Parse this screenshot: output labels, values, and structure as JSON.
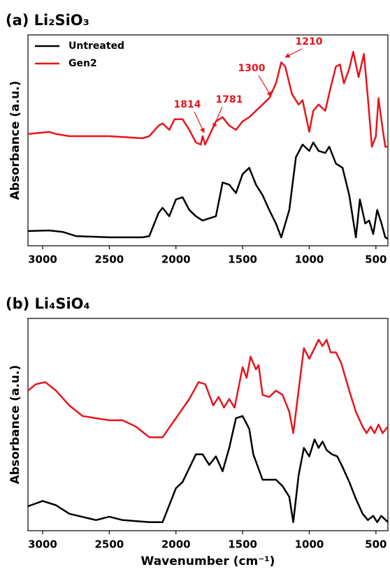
{
  "chart_data": [
    {
      "type": "line",
      "title": "(a) Li₂SiO₃",
      "ylabel": "Absorbance (a.u.)",
      "xlim": [
        3110,
        410
      ],
      "ylim": [
        0,
        100
      ],
      "xticks": [
        3000,
        2500,
        2000,
        1500,
        1000,
        500
      ],
      "legend": "upper left",
      "annotations": [
        1814,
        1781,
        1300,
        1210
      ],
      "annotation_color": "#e8141c",
      "series": [
        {
          "name": "Untreated",
          "color": "#000000",
          "x": [
            3110,
            2950,
            2850,
            2750,
            2500,
            2250,
            2200,
            2130,
            2100,
            2050,
            2000,
            1950,
            1900,
            1850,
            1800,
            1750,
            1700,
            1650,
            1600,
            1550,
            1500,
            1450,
            1400,
            1350,
            1300,
            1250,
            1210,
            1150,
            1100,
            1050,
            1000,
            970,
            930,
            880,
            850,
            800,
            750,
            700,
            650,
            620,
            580,
            550,
            520,
            490,
            460,
            430,
            410
          ],
          "values": [
            7,
            7.3,
            6.6,
            4.6,
            4,
            4,
            4.6,
            15.6,
            18,
            14,
            22,
            23,
            17,
            14,
            12,
            13,
            14,
            30,
            29,
            25,
            34,
            37,
            29,
            24,
            17,
            10.6,
            4,
            17,
            42,
            48,
            45,
            49,
            45,
            44,
            47,
            39,
            37,
            24,
            4,
            22,
            10.6,
            12,
            5.6,
            17,
            11,
            4,
            3.3
          ]
        },
        {
          "name": "Gen2",
          "color": "#e8141c",
          "x": [
            3110,
            2950,
            2900,
            2800,
            2500,
            2250,
            2200,
            2130,
            2100,
            2050,
            2010,
            1950,
            1900,
            1850,
            1814,
            1800,
            1781,
            1700,
            1650,
            1600,
            1550,
            1500,
            1450,
            1400,
            1350,
            1300,
            1250,
            1210,
            1180,
            1130,
            1080,
            1050,
            1000,
            970,
            930,
            880,
            840,
            800,
            770,
            740,
            700,
            670,
            630,
            590,
            560,
            530,
            500,
            480,
            460,
            430,
            410
          ],
          "values": [
            53,
            54,
            53,
            52,
            52,
            51,
            52,
            57,
            58,
            55,
            60,
            60,
            55,
            49,
            48,
            52,
            48,
            59,
            61,
            57,
            55,
            59,
            61,
            64,
            67,
            70,
            77,
            87,
            85,
            72,
            67,
            69,
            54,
            64,
            67,
            64,
            75,
            85,
            86,
            77,
            84,
            92,
            80,
            91,
            70,
            47,
            52,
            70,
            60,
            47,
            47
          ]
        }
      ]
    },
    {
      "type": "line",
      "title": "(b) Li₄SiO₄",
      "ylabel": "Absorbance (a.u.)",
      "xlabel": "Wavenumber (cm⁻¹)",
      "xlim": [
        3110,
        410
      ],
      "ylim": [
        0,
        100
      ],
      "xticks": [
        3000,
        2500,
        2000,
        1500,
        1000,
        500
      ],
      "series": [
        {
          "name": "Untreated",
          "color": "#000000",
          "x": [
            3110,
            3000,
            2900,
            2800,
            2600,
            2500,
            2400,
            2200,
            2100,
            2000,
            1950,
            1850,
            1800,
            1750,
            1700,
            1650,
            1600,
            1550,
            1500,
            1450,
            1420,
            1350,
            1300,
            1250,
            1200,
            1150,
            1120,
            1080,
            1040,
            1000,
            960,
            930,
            900,
            870,
            830,
            790,
            750,
            700,
            650,
            600,
            560,
            520,
            490,
            460,
            410
          ],
          "values": [
            11.5,
            14,
            12,
            8,
            5,
            6.6,
            5,
            4,
            4,
            20,
            23,
            36,
            36,
            31,
            35,
            28,
            39,
            53,
            54,
            48,
            36,
            24,
            24,
            24,
            21,
            16,
            4,
            26,
            39,
            35,
            43,
            39,
            42,
            38,
            36,
            35,
            30,
            23,
            15,
            8,
            5,
            7,
            4,
            7,
            4
          ]
        },
        {
          "name": "Gen2",
          "color": "#e8141c",
          "x": [
            3110,
            3050,
            2980,
            2900,
            2800,
            2700,
            2600,
            2500,
            2400,
            2300,
            2200,
            2100,
            2000,
            1900,
            1830,
            1780,
            1720,
            1680,
            1640,
            1600,
            1560,
            1500,
            1470,
            1440,
            1400,
            1380,
            1350,
            1300,
            1250,
            1200,
            1150,
            1120,
            1080,
            1040,
            1000,
            960,
            930,
            900,
            870,
            840,
            800,
            760,
            700,
            650,
            600,
            570,
            540,
            510,
            480,
            450,
            410
          ],
          "values": [
            66,
            69,
            70,
            66,
            59,
            54,
            53,
            52,
            52,
            49,
            44,
            44,
            53,
            62,
            70,
            69,
            59,
            63,
            58,
            62,
            58,
            77,
            72,
            82,
            76,
            78,
            64,
            63,
            66,
            64,
            56,
            46,
            66,
            86,
            81,
            86,
            90,
            87,
            90,
            84,
            84,
            79,
            66,
            56,
            49,
            46,
            49,
            46,
            50,
            46,
            49
          ]
        }
      ]
    }
  ]
}
